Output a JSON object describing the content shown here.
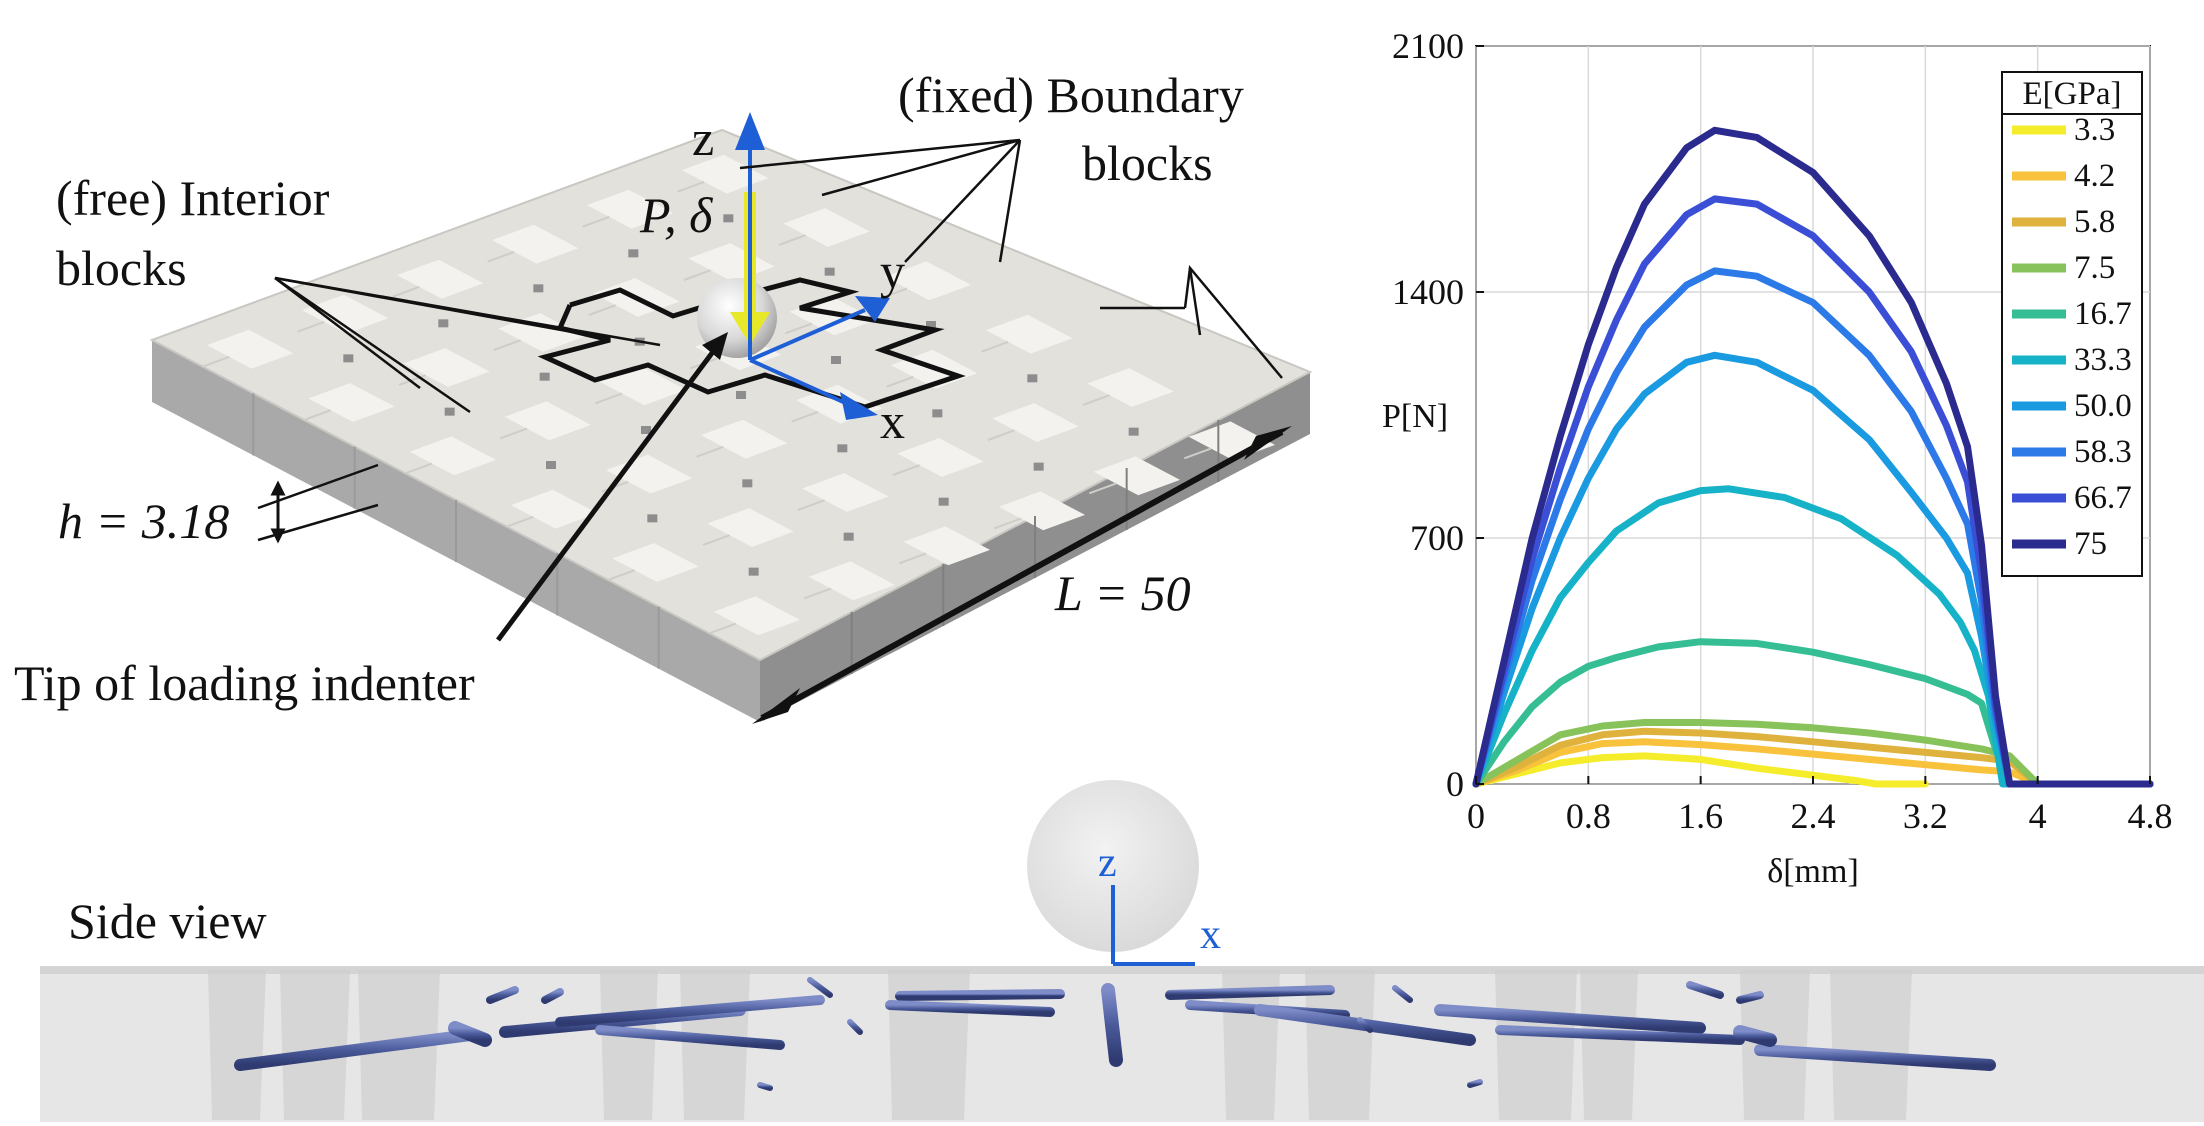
{
  "figure": {
    "labels": {
      "boundary_line1": "(fixed) Boundary",
      "boundary_line2": "blocks",
      "interior_line1": "(free) Interior",
      "interior_line2": "blocks",
      "h_label": "h = 3.18",
      "L_label": "L = 50",
      "P_label": "P, δ",
      "tip_label": "Tip of loading indenter",
      "side_view": "Side view",
      "axis_z": "z",
      "axis_y": "y",
      "axis_x": "x",
      "side_axis_z": "z",
      "side_axis_x": "x"
    },
    "colors": {
      "plate_top": "#e3e1dc",
      "plate_side": "#a9a9a9",
      "tile": "#f4f2ee",
      "axis_blue": "#1f5fd6",
      "load_arrow": "#e8e82a",
      "rod": "#4a5a9a"
    }
  },
  "chart_data": {
    "type": "line",
    "xlabel": "δ[mm]",
    "ylabel": "P[N]",
    "xlim": [
      0,
      4.8
    ],
    "ylim": [
      0,
      2100
    ],
    "xticks": [
      "0",
      "0.8",
      "1.6",
      "2.4",
      "3.2",
      "4",
      "4.8"
    ],
    "yticks": [
      "0",
      "700",
      "1400",
      "2100"
    ],
    "grid": true,
    "legend_title": "E[GPa]",
    "legend_position": "top-right",
    "series": [
      {
        "name": "3.3",
        "color": "#f5ec2b",
        "x": [
          0,
          0.3,
          0.6,
          0.9,
          1.2,
          1.6,
          2.0,
          2.4,
          2.7,
          2.85,
          3.2
        ],
        "y": [
          0,
          30,
          60,
          75,
          80,
          70,
          45,
          25,
          10,
          0,
          0
        ]
      },
      {
        "name": "4.2",
        "color": "#f8c23d",
        "x": [
          0,
          0.3,
          0.6,
          0.9,
          1.2,
          1.6,
          2.0,
          2.4,
          2.8,
          3.2,
          3.6,
          3.8,
          4.0
        ],
        "y": [
          0,
          40,
          90,
          115,
          120,
          112,
          100,
          85,
          70,
          55,
          40,
          35,
          0
        ]
      },
      {
        "name": "5.8",
        "color": "#deb23d",
        "x": [
          0,
          0.3,
          0.6,
          0.9,
          1.2,
          1.6,
          2.0,
          2.4,
          2.8,
          3.2,
          3.6,
          3.8,
          4.0
        ],
        "y": [
          0,
          50,
          110,
          140,
          150,
          145,
          135,
          120,
          105,
          90,
          75,
          65,
          0
        ]
      },
      {
        "name": "7.5",
        "color": "#88c25a",
        "x": [
          0,
          0.3,
          0.6,
          0.9,
          1.2,
          1.6,
          2.0,
          2.4,
          2.8,
          3.2,
          3.6,
          3.8,
          4.0
        ],
        "y": [
          0,
          70,
          140,
          165,
          175,
          175,
          170,
          160,
          145,
          125,
          100,
          80,
          0
        ]
      },
      {
        "name": "16.7",
        "color": "#35be94",
        "x": [
          0,
          0.2,
          0.4,
          0.6,
          0.8,
          1.0,
          1.3,
          1.6,
          2.0,
          2.4,
          2.8,
          3.2,
          3.5,
          3.6,
          3.7,
          3.8,
          4.8
        ],
        "y": [
          0,
          120,
          220,
          290,
          335,
          360,
          390,
          405,
          400,
          375,
          340,
          300,
          255,
          230,
          100,
          0,
          0
        ]
      },
      {
        "name": "33.3",
        "color": "#16b2c8",
        "x": [
          0,
          0.2,
          0.4,
          0.6,
          0.8,
          1.0,
          1.3,
          1.6,
          1.8,
          2.2,
          2.6,
          3.0,
          3.3,
          3.45,
          3.55,
          3.65,
          3.75,
          4.8
        ],
        "y": [
          0,
          200,
          380,
          530,
          630,
          720,
          800,
          835,
          840,
          815,
          755,
          650,
          540,
          460,
          380,
          250,
          0,
          0
        ]
      },
      {
        "name": "50.0",
        "color": "#1a9ae0",
        "x": [
          0,
          0.2,
          0.4,
          0.6,
          0.8,
          1.0,
          1.2,
          1.5,
          1.7,
          2.0,
          2.4,
          2.8,
          3.1,
          3.35,
          3.5,
          3.6,
          3.7,
          3.8,
          4.8
        ],
        "y": [
          0,
          260,
          500,
          700,
          870,
          1010,
          1110,
          1200,
          1220,
          1200,
          1120,
          980,
          830,
          700,
          600,
          420,
          180,
          0,
          0
        ]
      },
      {
        "name": "58.3",
        "color": "#2c7ae8",
        "x": [
          0,
          0.2,
          0.4,
          0.6,
          0.8,
          1.0,
          1.2,
          1.5,
          1.7,
          2.0,
          2.4,
          2.8,
          3.1,
          3.35,
          3.5,
          3.6,
          3.7,
          3.8,
          4.8
        ],
        "y": [
          0,
          300,
          580,
          810,
          1010,
          1170,
          1300,
          1420,
          1460,
          1445,
          1370,
          1220,
          1060,
          870,
          740,
          520,
          200,
          0,
          0
        ]
      },
      {
        "name": "66.7",
        "color": "#3a4fd6",
        "x": [
          0,
          0.2,
          0.4,
          0.6,
          0.8,
          1.0,
          1.2,
          1.5,
          1.7,
          2.0,
          2.4,
          2.8,
          3.1,
          3.35,
          3.5,
          3.6,
          3.7,
          3.8,
          4.8
        ],
        "y": [
          0,
          320,
          640,
          900,
          1130,
          1320,
          1480,
          1620,
          1665,
          1650,
          1560,
          1400,
          1230,
          1020,
          860,
          600,
          220,
          0,
          0
        ]
      },
      {
        "name": "75",
        "color": "#2b2a8e",
        "x": [
          0,
          0.2,
          0.4,
          0.6,
          0.8,
          1.0,
          1.2,
          1.5,
          1.7,
          2.0,
          2.4,
          2.8,
          3.1,
          3.35,
          3.5,
          3.6,
          3.7,
          3.8,
          4.8
        ],
        "y": [
          0,
          350,
          700,
          990,
          1250,
          1470,
          1650,
          1810,
          1860,
          1840,
          1740,
          1560,
          1370,
          1140,
          960,
          680,
          250,
          0,
          0
        ]
      }
    ]
  }
}
